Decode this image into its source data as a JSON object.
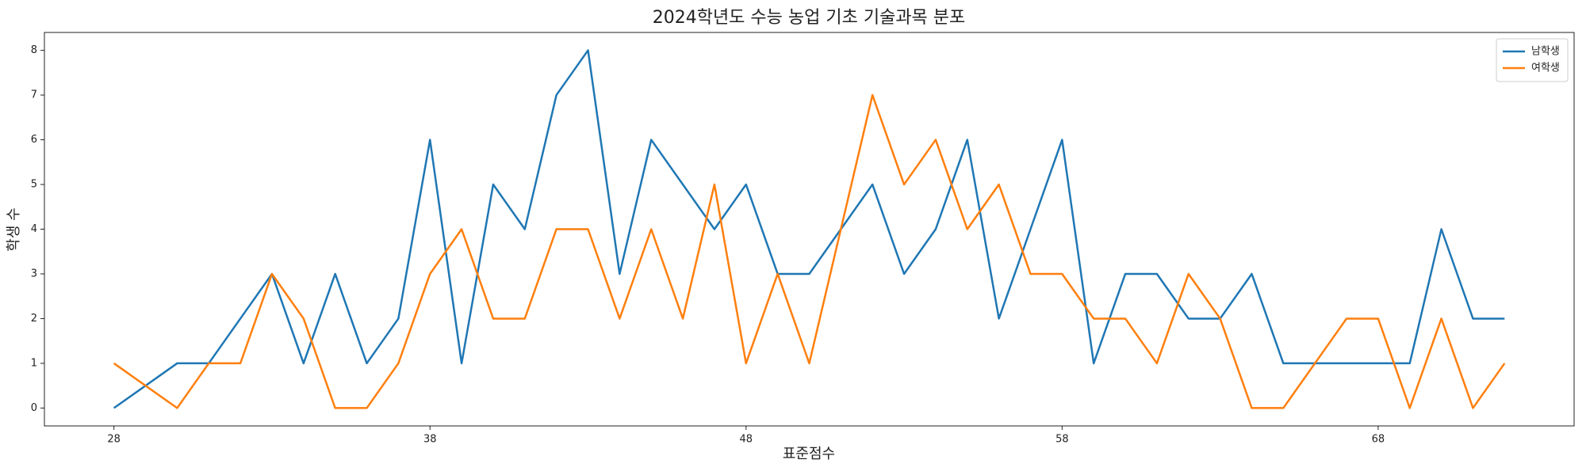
{
  "chart_data": {
    "type": "line",
    "title": "2024학년도 수능 농업 기초 기술과목 분포",
    "x_label": "표준점수",
    "y_label": "학생 수",
    "x": [
      28,
      30,
      31,
      32,
      33,
      34,
      35,
      36,
      37,
      38,
      39,
      40,
      41,
      42,
      43,
      44,
      45,
      46,
      47,
      48,
      49,
      50,
      51,
      52,
      53,
      54,
      55,
      56,
      57,
      58,
      59,
      60,
      61,
      62,
      63,
      64,
      65,
      66,
      67,
      68,
      69,
      70,
      71,
      72
    ],
    "series": [
      {
        "name": "남학생",
        "color": "#1f77b4",
        "values": [
          0,
          1,
          1,
          2,
          3,
          1,
          3,
          1,
          2,
          6,
          1,
          5,
          4,
          7,
          8,
          3,
          6,
          5,
          4,
          5,
          3,
          3,
          4,
          5,
          3,
          4,
          6,
          2,
          4,
          6,
          1,
          3,
          3,
          2,
          2,
          3,
          1,
          1,
          1,
          1,
          1,
          4,
          2,
          2
        ]
      },
      {
        "name": "여학생",
        "color": "#ff7f0e",
        "values": [
          1,
          0,
          1,
          1,
          3,
          2,
          0,
          0,
          1,
          3,
          4,
          2,
          2,
          4,
          4,
          2,
          4,
          2,
          5,
          1,
          3,
          1,
          4,
          7,
          5,
          6,
          4,
          5,
          3,
          3,
          2,
          2,
          1,
          3,
          2,
          0,
          0,
          1,
          2,
          2,
          0,
          2,
          0,
          1
        ]
      }
    ],
    "xlim": [
      25.8,
      74.2
    ],
    "ylim": [
      -0.4,
      8.4
    ],
    "xticks": [
      28,
      38,
      48,
      58,
      68
    ],
    "yticks": [
      0,
      1,
      2,
      3,
      4,
      5,
      6,
      7,
      8
    ],
    "legend": "upper right"
  }
}
